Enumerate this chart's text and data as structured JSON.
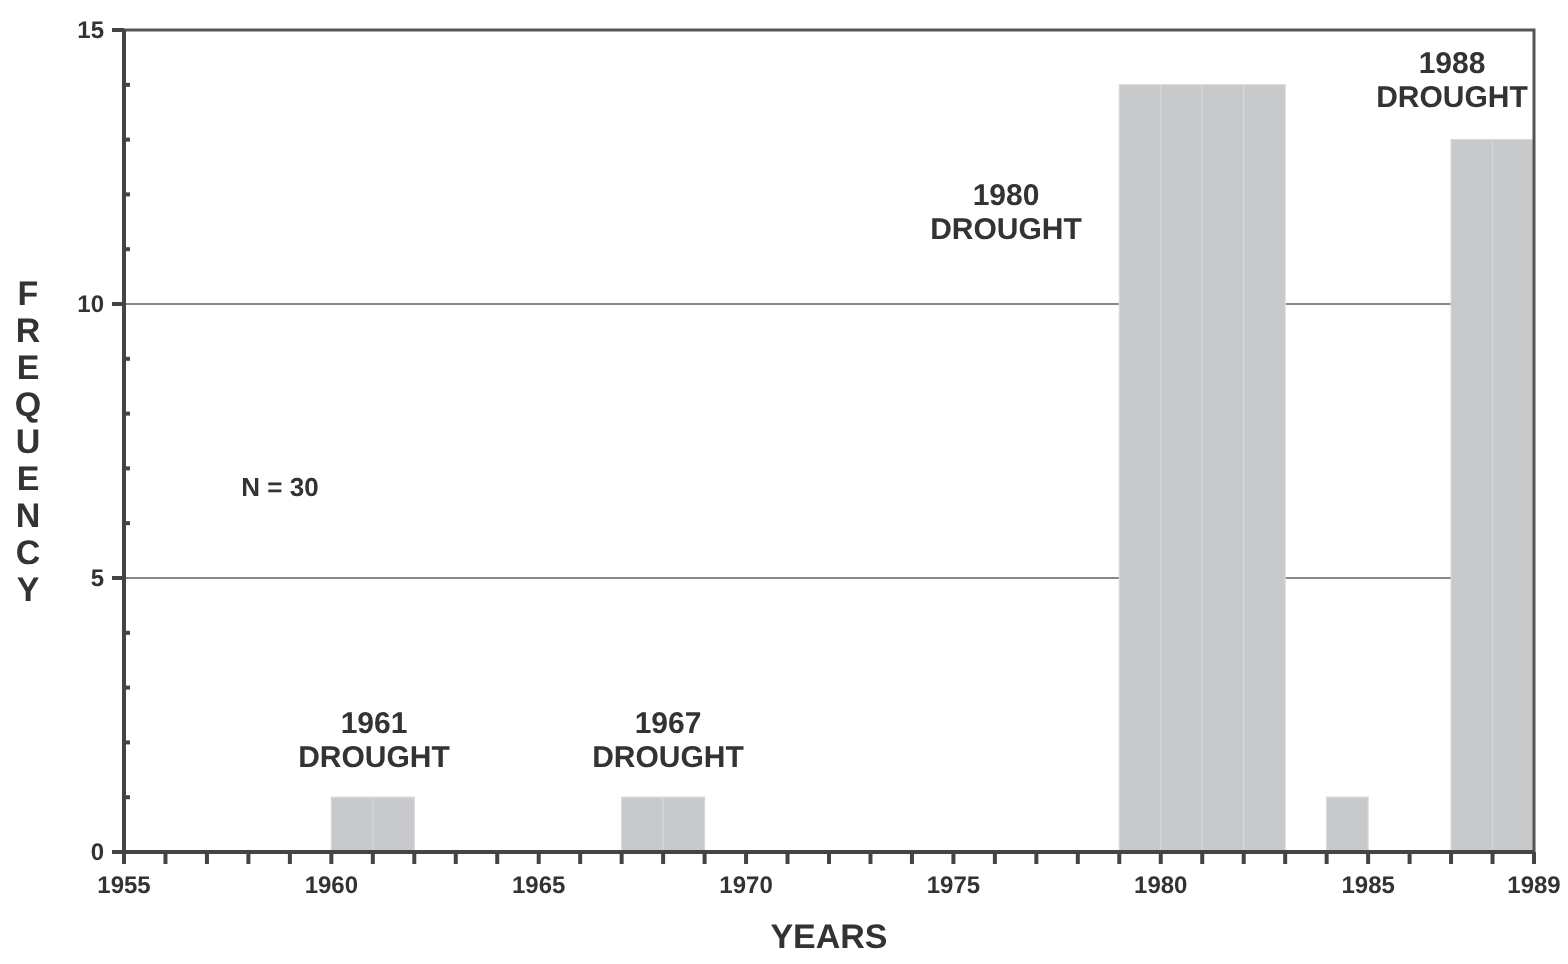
{
  "chart_data": {
    "type": "histogram",
    "xlabel": "YEARS",
    "ylabel": "FREQUENCY",
    "bins": [
      1960,
      1961,
      1962,
      1963,
      1964,
      1965,
      1966,
      1967,
      1968,
      1969,
      1970,
      1971,
      1972,
      1973,
      1974,
      1975,
      1976,
      1977,
      1978,
      1979,
      1980,
      1981,
      1982,
      1983,
      1984,
      1985,
      1986,
      1987,
      1988,
      1989
    ],
    "values": [
      1,
      1,
      0,
      0,
      0,
      0,
      0,
      1,
      1,
      0,
      0,
      0,
      0,
      0,
      0,
      0,
      0,
      0,
      0,
      14,
      14,
      14,
      14,
      0,
      1,
      0,
      0,
      13,
      13
    ],
    "color": "#c8c9cb",
    "xlim": [
      1955,
      1989
    ],
    "xticks": [
      1955,
      {
        "value": 1956,
        "label": null
      },
      {
        "value": 1957,
        "label": null
      },
      {
        "value": 1958,
        "label": null
      },
      {
        "value": 1959,
        "label": null
      },
      1960,
      {
        "value": 1961,
        "label": null
      },
      {
        "value": 1962,
        "label": null
      },
      {
        "value": 1963,
        "label": null
      },
      {
        "value": 1964,
        "label": null
      },
      1965,
      {
        "value": 1966,
        "label": null
      },
      {
        "value": 1967,
        "label": null
      },
      {
        "value": 1968,
        "label": null
      },
      {
        "value": 1969,
        "label": null
      },
      1970,
      {
        "value": 1971,
        "label": null
      },
      {
        "value": 1972,
        "label": null
      },
      {
        "value": 1973,
        "label": null
      },
      {
        "value": 1974,
        "label": null
      },
      1975,
      {
        "value": 1976,
        "label": null
      },
      {
        "value": 1977,
        "label": null
      },
      {
        "value": 1978,
        "label": null
      },
      {
        "value": 1979,
        "label": null
      },
      1980,
      {
        "value": 1981,
        "label": null
      },
      {
        "value": 1982,
        "label": null
      },
      {
        "value": 1983,
        "label": null
      },
      {
        "value": 1984,
        "label": null
      },
      1985,
      {
        "value": 1986,
        "label": null
      },
      {
        "value": 1987,
        "label": null
      },
      {
        "value": 1988,
        "label": null
      },
      1989
    ],
    "ylim": [
      0,
      15
    ],
    "yticks": [
      0,
      {
        "value": 1,
        "label": null
      },
      {
        "value": 2,
        "label": null
      },
      {
        "value": 3,
        "label": null
      },
      {
        "value": 4,
        "label": null
      },
      5,
      {
        "value": 6,
        "label": null
      },
      {
        "value": 7,
        "label": null
      },
      {
        "value": 8,
        "label": null
      },
      {
        "value": 9,
        "label": null
      },
      10,
      {
        "value": 11,
        "label": null
      },
      {
        "value": 12,
        "label": null
      },
      {
        "value": 13,
        "label": null
      },
      {
        "value": 14,
        "label": null
      },
      15
    ],
    "grid": "y",
    "annotations": [
      "1961 DROUGHT",
      "1967 DROUGHT",
      "1980 DROUGHT",
      "1988 DROUGHT",
      "N = 30"
    ]
  }
}
